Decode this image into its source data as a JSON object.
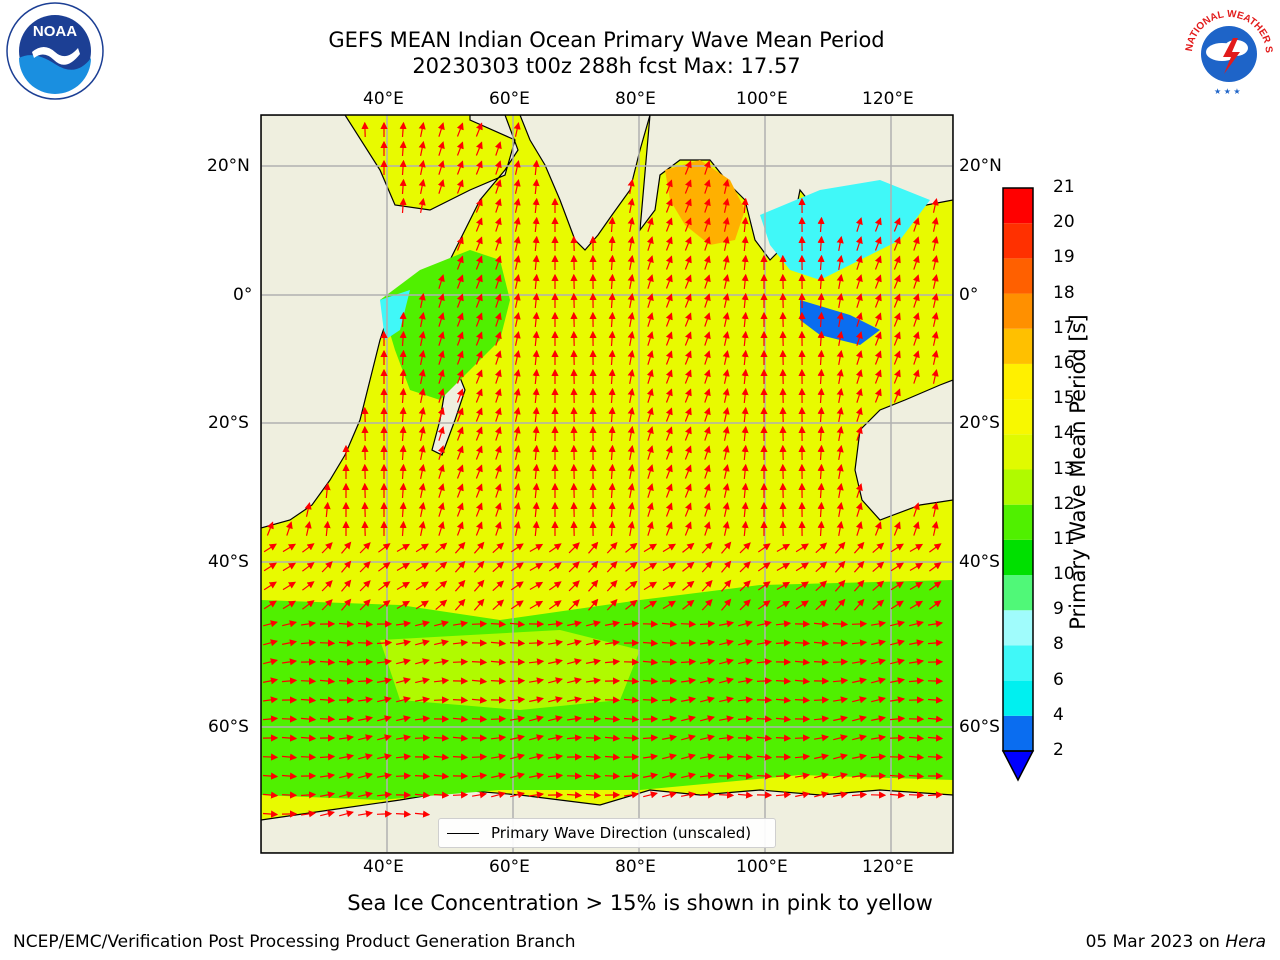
{
  "title_line1": "GEFS MEAN Indian Ocean Primary Wave Mean Period",
  "title_line2": "20230303 t00z 288h fcst   Max: 17.57",
  "subtitle": "Sea Ice Concentration > 15% is shown in pink to yellow",
  "footer_left": "NCEP/EMC/Verification Post Processing Product Generation Branch",
  "footer_right_date": "05 Mar 2023 on ",
  "footer_right_host": "Hera",
  "logos": {
    "noaa": "NOAA",
    "nws": "NATIONAL WEATHER SERVICE"
  },
  "map": {
    "lon_ticks": [
      "40°E",
      "60°E",
      "80°E",
      "100°E",
      "120°E"
    ],
    "lat_ticks": [
      "20°N",
      "0°",
      "20°S",
      "40°S",
      "60°S"
    ],
    "lon_range": [
      20,
      130
    ],
    "lat_range": [
      -70,
      28
    ],
    "legend_label": "Primary Wave Direction (unscaled)",
    "arrow_color": "#ff0000",
    "land_color": "#efefdf"
  },
  "colorbar": {
    "label": "Primary Wave Mean Period [s]",
    "ticks": [
      "2",
      "4",
      "6",
      "8",
      "9",
      "10",
      "11",
      "12",
      "13",
      "14",
      "15",
      "16",
      "17",
      "18",
      "19",
      "20",
      "21"
    ],
    "colors": [
      "#0a6df0",
      "#00f0f0",
      "#40f8f8",
      "#a0fcfc",
      "#50f878",
      "#00e000",
      "#50f000",
      "#b0fa00",
      "#e0fa00",
      "#f8f800",
      "#fff000",
      "#ffc000",
      "#ff9000",
      "#ff6000",
      "#ff3000",
      "#ff0000"
    ],
    "under_color": "#0000ff"
  }
}
